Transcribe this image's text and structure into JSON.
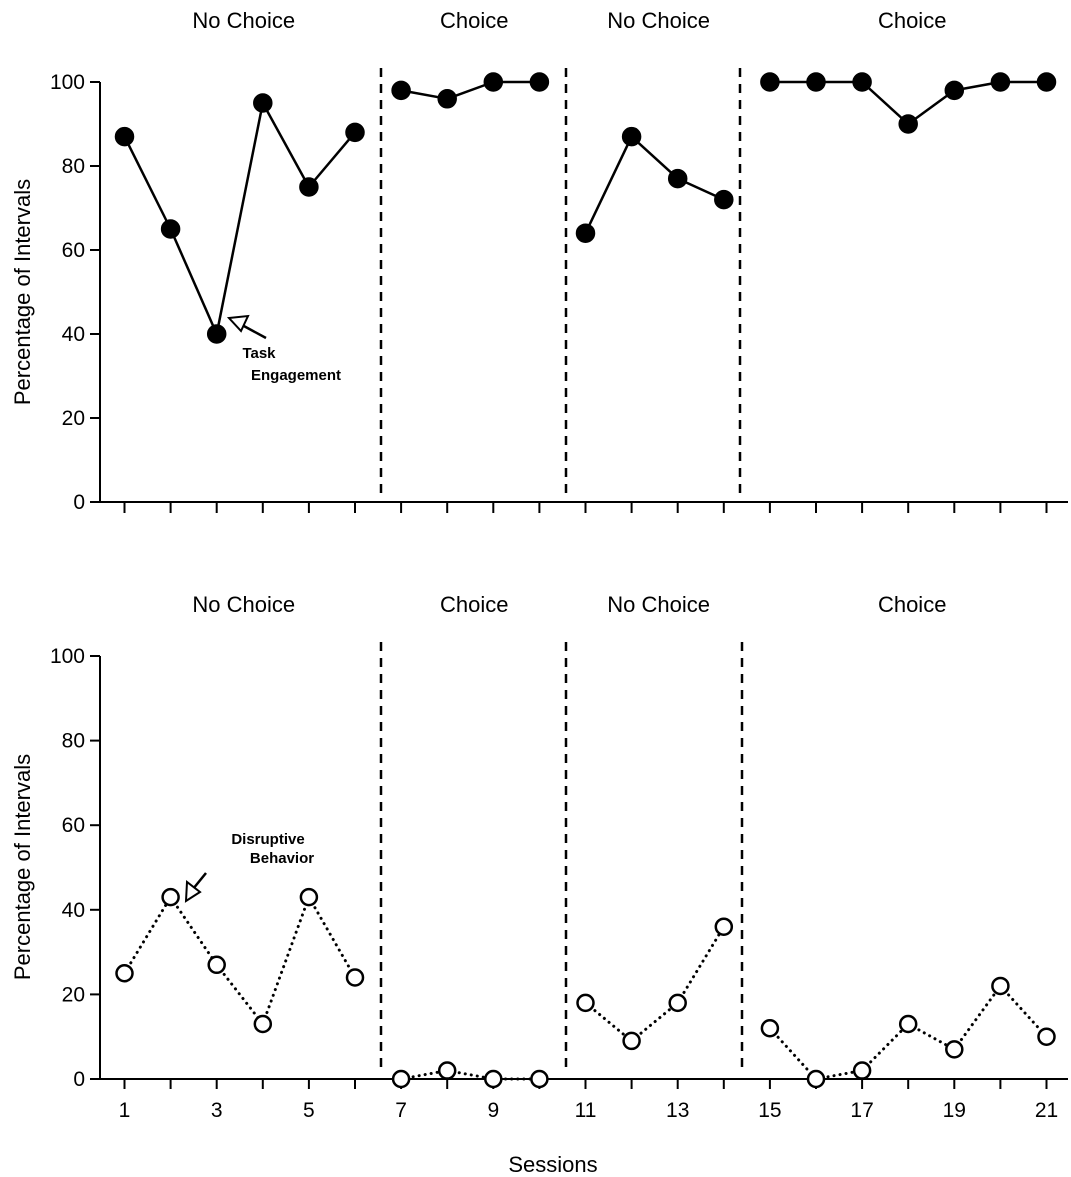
{
  "chart_data": [
    {
      "type": "line",
      "panel": "top",
      "ylabel": "Percentage of Intervals",
      "ylim": [
        0,
        100
      ],
      "yticks": [
        "0",
        "20",
        "40",
        "60",
        "80",
        "100"
      ],
      "phases": [
        {
          "label": "No Choice",
          "sessions": [
            1,
            6
          ]
        },
        {
          "label": "Choice",
          "sessions": [
            7,
            10
          ]
        },
        {
          "label": "No Choice",
          "sessions": [
            11,
            14
          ]
        },
        {
          "label": "Choice",
          "sessions": [
            15,
            21
          ]
        }
      ],
      "series": [
        {
          "name": "Task Engagement",
          "marker": "filled-circle",
          "line": "solid",
          "x": [
            1,
            2,
            3,
            4,
            5,
            6,
            7,
            8,
            9,
            10,
            11,
            12,
            13,
            14,
            15,
            16,
            17,
            18,
            19,
            20,
            21
          ],
          "values": [
            87,
            65,
            40,
            95,
            75,
            88,
            98,
            96,
            100,
            100,
            64,
            87,
            77,
            72,
            100,
            100,
            100,
            90,
            98,
            100,
            100
          ]
        }
      ],
      "annotation": {
        "line1": "Task",
        "line2": "Engagement"
      }
    },
    {
      "type": "line",
      "panel": "bottom",
      "ylabel": "Percentage of Intervals",
      "xlabel": "Sessions",
      "ylim": [
        0,
        100
      ],
      "yticks": [
        "0",
        "20",
        "40",
        "60",
        "80",
        "100"
      ],
      "xticks": [
        "1",
        "3",
        "5",
        "7",
        "9",
        "11",
        "13",
        "15",
        "17",
        "19",
        "21"
      ],
      "phases": [
        {
          "label": "No Choice",
          "sessions": [
            1,
            6
          ]
        },
        {
          "label": "Choice",
          "sessions": [
            7,
            10
          ]
        },
        {
          "label": "No Choice",
          "sessions": [
            11,
            14
          ]
        },
        {
          "label": "Choice",
          "sessions": [
            15,
            21
          ]
        }
      ],
      "series": [
        {
          "name": "Disruptive Behavior",
          "marker": "open-circle",
          "line": "dotted",
          "x": [
            1,
            2,
            3,
            4,
            5,
            6,
            7,
            8,
            9,
            10,
            11,
            12,
            13,
            14,
            15,
            16,
            17,
            18,
            19,
            20,
            21
          ],
          "values": [
            25,
            43,
            27,
            13,
            43,
            24,
            0,
            2,
            0,
            0,
            18,
            9,
            18,
            36,
            12,
            0,
            2,
            13,
            7,
            22,
            10
          ]
        }
      ],
      "annotation": {
        "line1": "Disruptive",
        "line2": "Behavior"
      }
    }
  ]
}
